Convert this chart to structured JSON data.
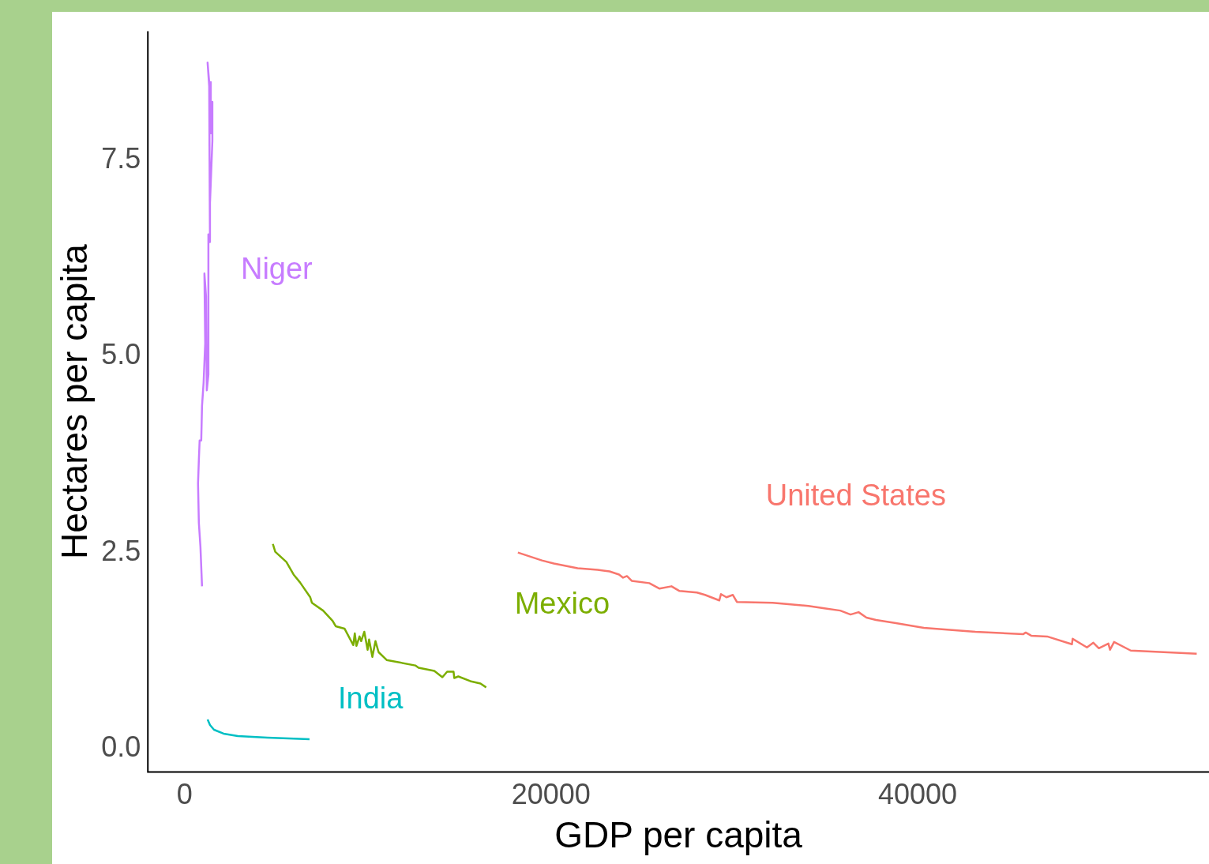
{
  "chart_data": {
    "type": "line",
    "xlabel": "GDP per capita",
    "ylabel": "Hectares per capita",
    "xlim": [
      -2000,
      55900
    ],
    "ylim": [
      -0.3,
      9.15
    ],
    "xticks": [
      0,
      20000,
      40000
    ],
    "yticks": [
      {
        "value": 0,
        "label": "0.0"
      },
      2.5,
      {
        "value": 5,
        "label": "5.0"
      },
      7.5
    ],
    "grid": false,
    "legend": false,
    "marker": "none",
    "series": [
      {
        "name": "Niger",
        "color": "#c77cff",
        "x": [
          955,
          868,
          782,
          738,
          782,
          825,
          912,
          955,
          1042,
          1129,
          1086,
          1172,
          1216,
          1303,
          1303,
          1389,
          1346,
          1259,
          1346,
          1433,
          1433,
          1520,
          1520,
          1389,
          1389
        ],
        "values": [
          2.07,
          2.58,
          2.88,
          3.38,
          3.68,
          3.93,
          3.93,
          4.37,
          4.67,
          5.17,
          6.06,
          5.77,
          4.57,
          4.77,
          6.56,
          6.46,
          8.45,
          8.75,
          8.5,
          8.5,
          7.85,
          8.25,
          7.75,
          6.96,
          6.51
        ]
      },
      {
        "name": "Mexico",
        "color": "#7cae00",
        "x": [
          4820,
          4950,
          5560,
          5950,
          6300,
          6860,
          6950,
          7560,
          8080,
          8250,
          8730,
          9210,
          9290,
          9380,
          9550,
          9640,
          9810,
          9990,
          10070,
          10250,
          10420,
          10590,
          11030,
          12590,
          12770,
          13630,
          14070,
          14330,
          14680,
          14720,
          14940,
          15590,
          16150,
          16460
        ],
        "values": [
          2.61,
          2.51,
          2.38,
          2.22,
          2.12,
          1.93,
          1.86,
          1.76,
          1.63,
          1.56,
          1.53,
          1.32,
          1.47,
          1.31,
          1.43,
          1.37,
          1.49,
          1.26,
          1.39,
          1.17,
          1.37,
          1.23,
          1.13,
          1.06,
          1.03,
          0.99,
          0.91,
          0.98,
          0.98,
          0.9,
          0.92,
          0.86,
          0.83,
          0.78
        ]
      },
      {
        "name": "India",
        "color": "#00bfc4",
        "x": [
          1260,
          1390,
          1610,
          2130,
          2910,
          4520,
          6820
        ],
        "values": [
          0.37,
          0.3,
          0.24,
          0.19,
          0.16,
          0.14,
          0.12
        ]
      },
      {
        "name": "United States",
        "color": "#f8766d",
        "x": [
          18190,
          19500,
          20150,
          21450,
          22540,
          23190,
          23710,
          23930,
          24140,
          24400,
          25360,
          25920,
          26570,
          27010,
          27960,
          28400,
          29180,
          29270,
          29570,
          29920,
          30140,
          32090,
          34040,
          34910,
          35780,
          36340,
          36780,
          37210,
          37730,
          38820,
          40340,
          43160,
          45770,
          45900,
          46200,
          47070,
          48420,
          48460,
          49240,
          49590,
          49890,
          50410,
          50500,
          50720,
          51630,
          55230
        ],
        "values": [
          2.5,
          2.4,
          2.36,
          2.3,
          2.28,
          2.26,
          2.22,
          2.18,
          2.2,
          2.14,
          2.11,
          2.04,
          2.07,
          2.01,
          1.99,
          1.96,
          1.89,
          1.97,
          1.93,
          1.96,
          1.87,
          1.86,
          1.82,
          1.79,
          1.76,
          1.71,
          1.74,
          1.67,
          1.64,
          1.6,
          1.54,
          1.49,
          1.46,
          1.48,
          1.44,
          1.43,
          1.33,
          1.4,
          1.29,
          1.35,
          1.28,
          1.34,
          1.26,
          1.36,
          1.25,
          1.21
        ]
      }
    ]
  }
}
